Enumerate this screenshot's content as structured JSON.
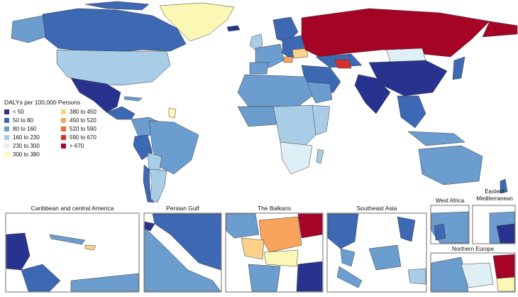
{
  "legend": {
    "title": "DALYs per 100,000 Persons",
    "items": [
      {
        "label": "< 50",
        "color": "#27338f"
      },
      {
        "label": "50  to  80",
        "color": "#3d68b4"
      },
      {
        "label": "80  to  160",
        "color": "#6c9dcf"
      },
      {
        "label": "160  to  230",
        "color": "#a9cde6"
      },
      {
        "label": "230  to  300",
        "color": "#def0f5"
      },
      {
        "label": "300  to  380",
        "color": "#fbf7b4"
      },
      {
        "label": "380  to  450",
        "color": "#fcd28a"
      },
      {
        "label": "450  to  520",
        "color": "#f8a45c"
      },
      {
        "label": "520  to  590",
        "color": "#ec6a3c"
      },
      {
        "label": "590  to  670",
        "color": "#d5312c"
      },
      {
        "label": "> 670",
        "color": "#a50426"
      }
    ]
  },
  "insets": [
    {
      "title": "Caribbean and central America"
    },
    {
      "title": "Persian Gulf"
    },
    {
      "title": "The Balkans"
    },
    {
      "title": "Southeast Asia"
    },
    {
      "title": "West Africa"
    },
    {
      "title": "Eastern\nMediterranean"
    },
    {
      "title": "Northern Europe"
    }
  ]
}
